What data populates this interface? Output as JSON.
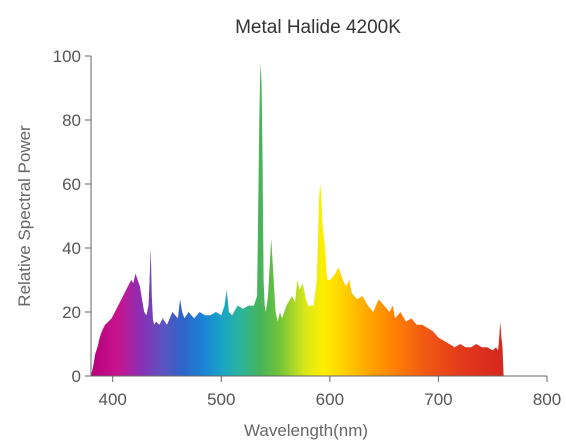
{
  "chart_data": {
    "type": "area",
    "title": "Metal Halide 4200K",
    "xlabel": "Wavelength(nm)",
    "ylabel": "Relative Spectral Power",
    "xlim": [
      380,
      800
    ],
    "ylim": [
      0,
      100
    ],
    "x_ticks": [
      400,
      500,
      600,
      700,
      800
    ],
    "y_ticks": [
      0,
      20,
      40,
      60,
      80,
      100
    ],
    "grid": false,
    "fill": "visible-spectrum-gradient",
    "series": [
      {
        "x": [
          380,
          382,
          384,
          386,
          388,
          390,
          393,
          396,
          399,
          402,
          405,
          408,
          411,
          414,
          417,
          419,
          421,
          423,
          425,
          427,
          429,
          431,
          433,
          434,
          435,
          436,
          437,
          438,
          440,
          443,
          446,
          450,
          455,
          460,
          462,
          464,
          466,
          470,
          475,
          480,
          485,
          490,
          495,
          500,
          503,
          505,
          507,
          510,
          515,
          520,
          525,
          530,
          533,
          535,
          536,
          537,
          538,
          539,
          540,
          541,
          543,
          546,
          550,
          552,
          554,
          556,
          560,
          565,
          568,
          570,
          572,
          575,
          578,
          580,
          585,
          588,
          590,
          591,
          592,
          593,
          594,
          595,
          596,
          597,
          598,
          600,
          605,
          608,
          612,
          615,
          618,
          620,
          625,
          630,
          635,
          640,
          645,
          650,
          655,
          658,
          660,
          665,
          670,
          675,
          680,
          685,
          690,
          695,
          700,
          705,
          710,
          715,
          720,
          725,
          730,
          735,
          740,
          745,
          750,
          753,
          755,
          756,
          757,
          758,
          759,
          760
        ],
        "y": [
          0,
          3,
          7,
          9,
          12,
          14,
          16,
          17,
          18,
          20,
          22,
          24,
          26,
          28,
          30,
          29,
          32,
          30,
          28,
          24,
          20,
          19,
          22,
          30,
          40,
          25,
          18,
          16,
          17,
          16,
          18,
          16,
          20,
          18,
          24,
          20,
          18,
          20,
          18,
          20,
          19,
          19,
          20,
          19,
          22,
          27,
          20,
          19,
          22,
          21,
          22,
          22,
          25,
          80,
          98,
          92,
          70,
          30,
          22,
          20,
          25,
          43,
          20,
          17,
          20,
          18,
          22,
          25,
          23,
          30,
          27,
          29,
          24,
          22,
          22,
          30,
          55,
          60,
          57,
          48,
          45,
          42,
          38,
          32,
          30,
          30,
          32,
          34,
          30,
          28,
          30,
          26,
          24,
          25,
          22,
          20,
          24,
          22,
          20,
          22,
          18,
          20,
          17,
          18,
          16,
          16,
          15,
          14,
          12,
          11,
          10,
          9,
          10,
          9,
          9,
          10,
          9,
          9,
          8,
          9,
          8,
          12,
          17,
          12,
          9,
          0
        ]
      }
    ]
  }
}
